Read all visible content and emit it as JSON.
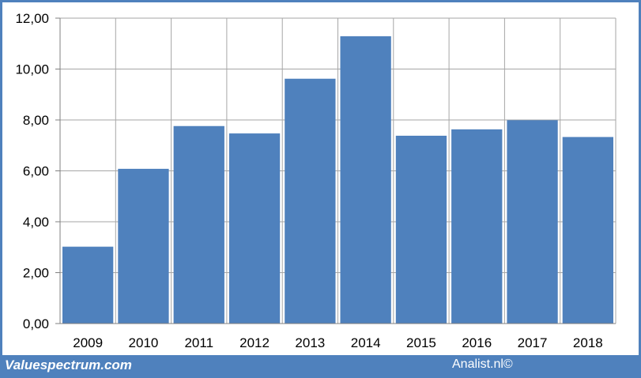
{
  "chart_data": {
    "type": "bar",
    "categories": [
      "2009",
      "2010",
      "2011",
      "2012",
      "2013",
      "2014",
      "2015",
      "2016",
      "2017",
      "2018"
    ],
    "values": [
      3.02,
      6.08,
      7.76,
      7.47,
      9.62,
      11.29,
      7.38,
      7.63,
      7.99,
      7.33
    ],
    "ylim": [
      0,
      12
    ],
    "yticks": [
      "0,00",
      "2,00",
      "4,00",
      "6,00",
      "8,00",
      "10,00",
      "12,00"
    ],
    "grid": true,
    "bar_color": "#4f81bd"
  },
  "footer": {
    "left_text": "Valuespectrum.com",
    "right_text": "Analist.nl©"
  }
}
